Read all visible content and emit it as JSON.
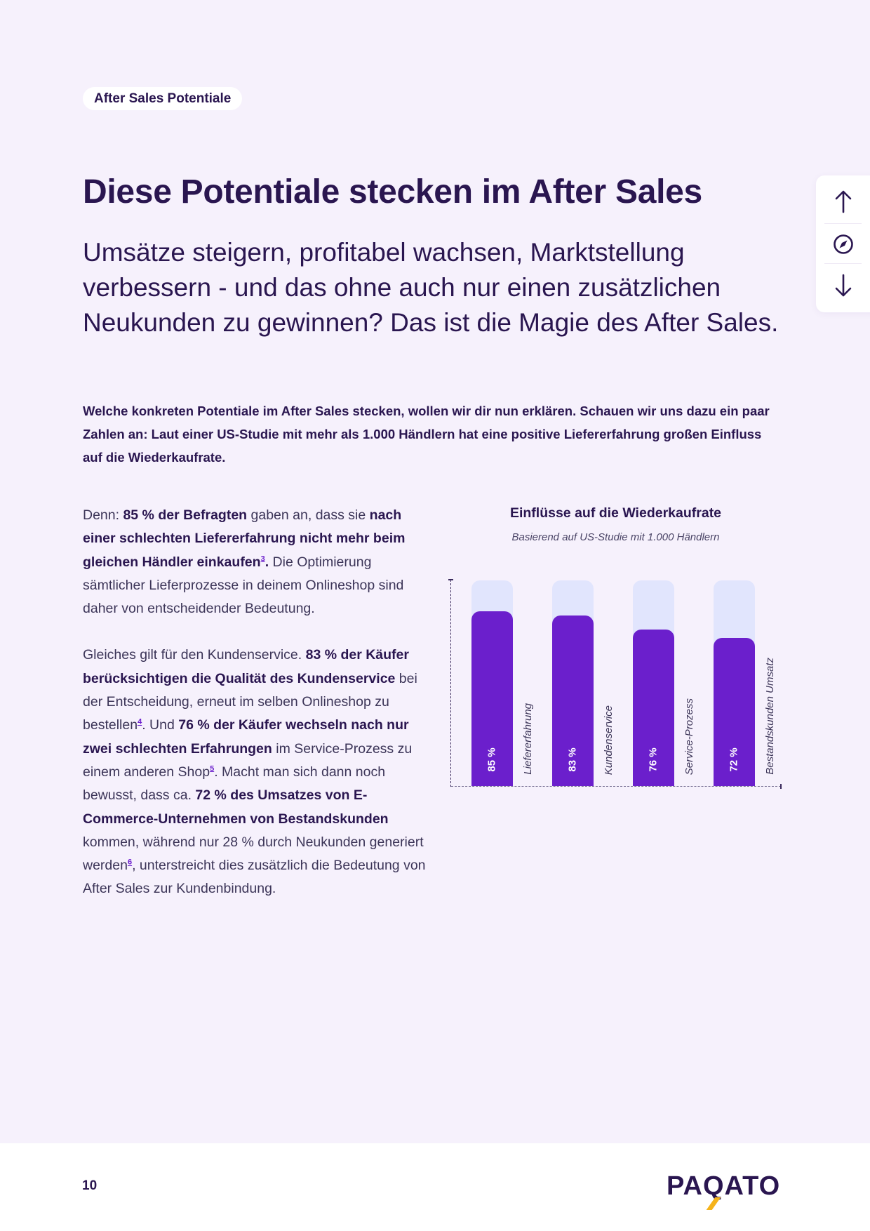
{
  "tag": {
    "label": "After Sales Potentiale"
  },
  "title": "Diese Potentiale stecken im After Sales",
  "subtitle": "Umsätze steigern, profitabel wachsen, Marktstellung verbessern - und das ohne auch nur einen zusätzlichen Neukunden zu gewinnen? Das ist die Magie des After Sales.",
  "intro": "Welche konkreten Potentiale im After Sales stecken, wollen wir dir nun erklären. Schauen wir uns dazu ein paar Zahlen an: Laut einer US-Studie mit mehr als 1.000 Händlern hat eine positive Liefererfahrung großen Einfluss auf die Wiederkaufrate.",
  "body": {
    "p1": {
      "t1": "Denn: ",
      "b1": "85 % der Befragten",
      "t2": " gaben an, dass sie ",
      "b2": "nach einer schlechten Liefererfahrung nicht mehr beim gleichen Händler einkaufen",
      "fn": "3",
      "b3": ".",
      "t3": " Die Optimierung sämtlicher Lieferprozesse in deinem Onlineshop sind daher von entscheidender Bedeutung."
    },
    "p2": {
      "t1": "Gleiches gilt für den Kundenservice. ",
      "b1": "83 % der Käufer berücksichtigen die Qualität des Kundenservice",
      "t2": " bei der Entscheidung, erneut im selben Onlineshop zu bestellen",
      "fn1": "4",
      "t3": ". Und ",
      "b2": "76 % der Käufer wechseln nach nur zwei schlechten Erfahrungen",
      "t4": " im Service-Prozess zu einem anderen Shop",
      "fn2": "5",
      "t5": ". Macht man sich dann noch bewusst, dass ca. ",
      "b3": "72 % des Umsatzes von E-Commerce-Unternehmen von Bestandskunden",
      "t6": " kommen, während nur 28 % durch Neukunden generiert werden",
      "fn3": "6",
      "t7": ", unterstreicht dies zusätzlich die Bedeutung von After Sales zur Kundenbindung."
    }
  },
  "nav": {
    "up_icon": "arrow-up-icon",
    "compass_icon": "compass-icon",
    "down_icon": "arrow-down-icon"
  },
  "footer": {
    "page_number": "10",
    "logo": "PAQATO"
  },
  "colors": {
    "background": "#f6f1fc",
    "text_dark": "#2a1650",
    "bar_fill": "#6b1fcc",
    "bar_track": "#e1e5fd",
    "logo_accent": "#f5b31a"
  },
  "chart_data": {
    "type": "bar",
    "title": "Einflüsse auf die Wiederkaufrate",
    "subtitle": "Basierend auf US-Studie mit 1.000 Händlern",
    "categories": [
      "Liefererfahrung",
      "Kundenservice",
      "Service-Prozess",
      "Bestandskunden Umsatz"
    ],
    "values": [
      85,
      83,
      76,
      72
    ],
    "value_labels": [
      "85 %",
      "83 %",
      "76 %",
      "72 %"
    ],
    "xlabel": "",
    "ylabel": "",
    "ylim": [
      0,
      100
    ],
    "grid": false,
    "legend": "none",
    "value_label_orientation": "vertical",
    "category_label_orientation": "vertical"
  }
}
